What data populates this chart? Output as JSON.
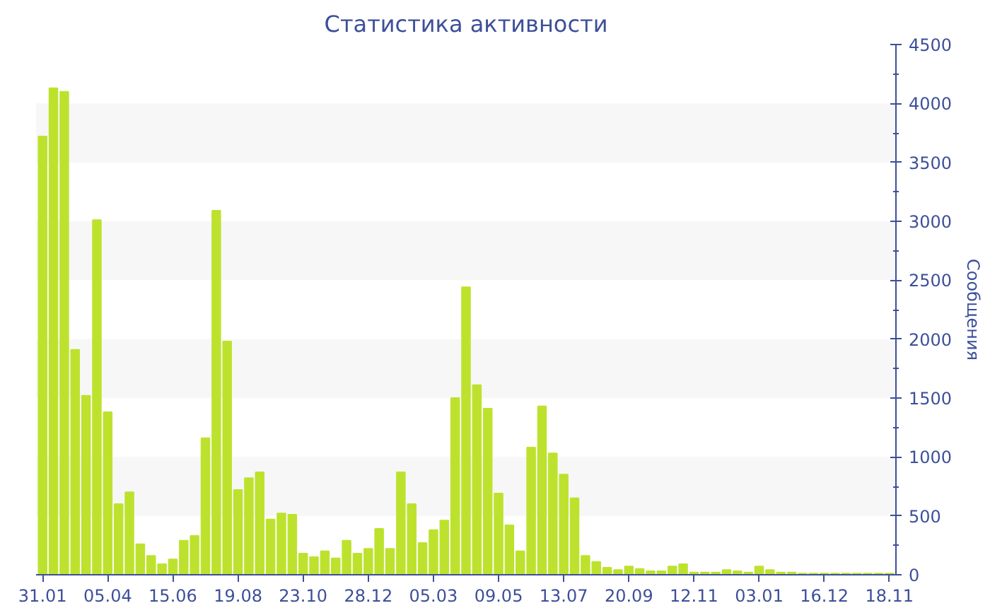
{
  "chart_data": {
    "type": "bar",
    "title": "Статистика активности",
    "ylabel": "Сообщения",
    "categories": [
      "31.01",
      null,
      null,
      null,
      null,
      null,
      "05.04",
      null,
      null,
      null,
      null,
      null,
      "15.06",
      null,
      null,
      null,
      null,
      null,
      "19.08",
      null,
      null,
      null,
      null,
      null,
      "23.10",
      null,
      null,
      null,
      null,
      null,
      "28.12",
      null,
      null,
      null,
      null,
      null,
      "05.03",
      null,
      null,
      null,
      null,
      null,
      "09.05",
      null,
      null,
      null,
      null,
      null,
      "13.07",
      null,
      null,
      null,
      null,
      null,
      "20.09",
      null,
      null,
      null,
      null,
      null,
      "12.11",
      null,
      null,
      null,
      null,
      null,
      "03.01",
      null,
      null,
      null,
      null,
      null,
      "16.12",
      null,
      null,
      null,
      null,
      null,
      "18.11"
    ],
    "values": [
      3720,
      4130,
      4100,
      1910,
      1520,
      3010,
      1380,
      600,
      700,
      260,
      160,
      90,
      130,
      290,
      330,
      1160,
      3090,
      1980,
      720,
      820,
      870,
      470,
      520,
      510,
      180,
      150,
      200,
      140,
      290,
      180,
      220,
      390,
      220,
      870,
      600,
      270,
      380,
      460,
      1500,
      2440,
      1610,
      1410,
      690,
      420,
      200,
      1080,
      1430,
      1030,
      850,
      650,
      160,
      110,
      60,
      40,
      70,
      50,
      30,
      30,
      70,
      90,
      20,
      20,
      20,
      40,
      30,
      20,
      70,
      40,
      20,
      20,
      10,
      10,
      10,
      10,
      10,
      10,
      10,
      10,
      10
    ],
    "color": "#bde22e",
    "ylim": [
      0,
      4500
    ],
    "yticks": [
      0,
      500,
      1000,
      1500,
      2000,
      2500,
      3000,
      3500,
      4000,
      4500
    ],
    "bands": [
      {
        "axis": "y",
        "from": 500,
        "to": 1000,
        "color": "#f7f7f7"
      },
      {
        "axis": "y",
        "from": 1500,
        "to": 2000,
        "color": "#f7f7f7"
      },
      {
        "axis": "y",
        "from": 2500,
        "to": 3000,
        "color": "#f7f7f7"
      },
      {
        "axis": "y",
        "from": 3500,
        "to": 4000,
        "color": "#f7f7f7"
      }
    ]
  }
}
